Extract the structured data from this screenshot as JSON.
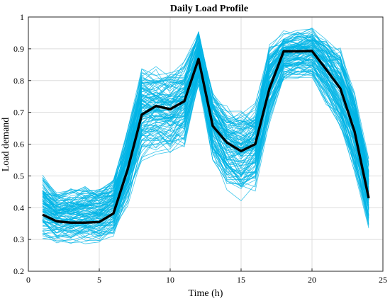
{
  "chart_data": {
    "type": "line",
    "title": "Daily Load Profile",
    "xlabel": "Time (h)",
    "ylabel": "Load demand",
    "xlim": [
      0,
      25
    ],
    "ylim": [
      0.2,
      1.0
    ],
    "grid": true,
    "x_ticks": [
      0,
      5,
      10,
      15,
      20,
      25
    ],
    "y_ticks": [
      0.2,
      0.3,
      0.4,
      0.5,
      0.6,
      0.7,
      0.8,
      0.9,
      1.0
    ],
    "x_tick_labels": [
      "0",
      "5",
      "10",
      "15",
      "20",
      "25"
    ],
    "y_tick_labels": [
      "0.2",
      "0.3",
      "0.4",
      "0.5",
      "0.6",
      "0.7",
      "0.8",
      "0.9",
      "1"
    ],
    "x": [
      1,
      2,
      3,
      4,
      5,
      6,
      7,
      8,
      9,
      10,
      11,
      12,
      13,
      14,
      15,
      16,
      17,
      18,
      19,
      20,
      21,
      22,
      23,
      24
    ],
    "series": [
      {
        "name": "",
        "color": "#000000",
        "values": [
          0.378,
          0.357,
          0.353,
          0.353,
          0.355,
          0.382,
          0.52,
          0.693,
          0.72,
          0.71,
          0.735,
          0.868,
          0.657,
          0.605,
          0.578,
          0.6,
          0.775,
          0.892,
          0.892,
          0.893,
          0.835,
          0.775,
          0.64,
          0.43
        ]
      }
    ],
    "scenario_band": {
      "color": "#00b4e6",
      "lower": [
        0.29,
        0.285,
        0.285,
        0.283,
        0.285,
        0.305,
        0.395,
        0.54,
        0.56,
        0.565,
        0.585,
        0.77,
        0.54,
        0.455,
        0.415,
        0.45,
        0.66,
        0.79,
        0.8,
        0.8,
        0.72,
        0.63,
        0.5,
        0.32
      ],
      "upper": [
        0.51,
        0.46,
        0.465,
        0.47,
        0.47,
        0.5,
        0.66,
        0.855,
        0.85,
        0.84,
        0.87,
        0.965,
        0.78,
        0.73,
        0.72,
        0.74,
        0.92,
        0.96,
        0.965,
        0.97,
        0.945,
        0.915,
        0.78,
        0.56
      ]
    }
  }
}
